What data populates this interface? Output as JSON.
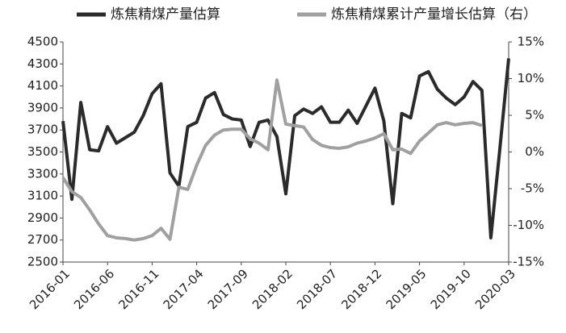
{
  "chart_data": {
    "type": "line",
    "categories": [
      "2016-01",
      null,
      null,
      null,
      null,
      "2016-06",
      null,
      null,
      null,
      null,
      "2016-11",
      null,
      null,
      null,
      null,
      "2017-04",
      null,
      null,
      null,
      null,
      "2017-09",
      null,
      null,
      null,
      null,
      "2018-02",
      null,
      null,
      null,
      null,
      "2018-07",
      null,
      null,
      null,
      null,
      "2018-12",
      null,
      null,
      null,
      null,
      "2019-05",
      null,
      null,
      null,
      null,
      "2019-10",
      null,
      null,
      null,
      null,
      "2020-03"
    ],
    "series": [
      {
        "name": "炼焦精煤产量估算",
        "color": "#2b2b2b",
        "dotted_from": "2019-12",
        "values": [
          3780,
          3070,
          3950,
          3520,
          3510,
          3730,
          3580,
          3630,
          3680,
          3830,
          4030,
          4120,
          3310,
          3190,
          3730,
          3770,
          3990,
          4040,
          3840,
          3800,
          3790,
          3550,
          3770,
          3790,
          3640,
          3120,
          3830,
          3890,
          3850,
          3910,
          3770,
          3770,
          3880,
          3760,
          3920,
          4080,
          3780,
          3030,
          3850,
          3810,
          4190,
          4230,
          4070,
          3990,
          3930,
          4000,
          4140,
          4060,
          2720,
          3520,
          4350
        ]
      },
      {
        "name": "炼焦精煤累计产量增长估算（右）",
        "color": "#a0a0a0",
        "axis": "y2",
        "values": [
          -3.5,
          -5.4,
          -6.2,
          -7.9,
          -9.8,
          -11.4,
          -11.7,
          -11.8,
          -12.0,
          -11.8,
          -11.4,
          -10.4,
          -11.9,
          -4.8,
          -5.1,
          -1.8,
          0.9,
          2.3,
          3.0,
          3.1,
          3.1,
          1.8,
          1.2,
          0.3,
          9.8,
          3.8,
          3.6,
          3.4,
          1.7,
          0.9,
          0.6,
          0.5,
          0.7,
          1.2,
          1.5,
          1.9,
          2.5,
          0.3,
          0.4,
          -0.2,
          1.5,
          2.6,
          3.7,
          4.0,
          3.7,
          3.9,
          4.0,
          3.6,
          null,
          null,
          null
        ]
      }
    ],
    "ylim": [
      2500,
      4500
    ],
    "yticks": [
      2500,
      2700,
      2900,
      3100,
      3300,
      3500,
      3700,
      3900,
      4100,
      4300,
      4500
    ],
    "y2lim": [
      -15,
      15
    ],
    "y2ticks": [
      {
        "value": -15,
        "label": "-15%"
      },
      {
        "value": -10,
        "label": "-10%"
      },
      {
        "value": -5,
        "label": "-5%"
      },
      {
        "value": 0,
        "label": "0%"
      },
      {
        "value": 5,
        "label": "5%"
      },
      {
        "value": 10,
        "label": "10%"
      },
      {
        "value": 15,
        "label": "15%"
      }
    ]
  }
}
